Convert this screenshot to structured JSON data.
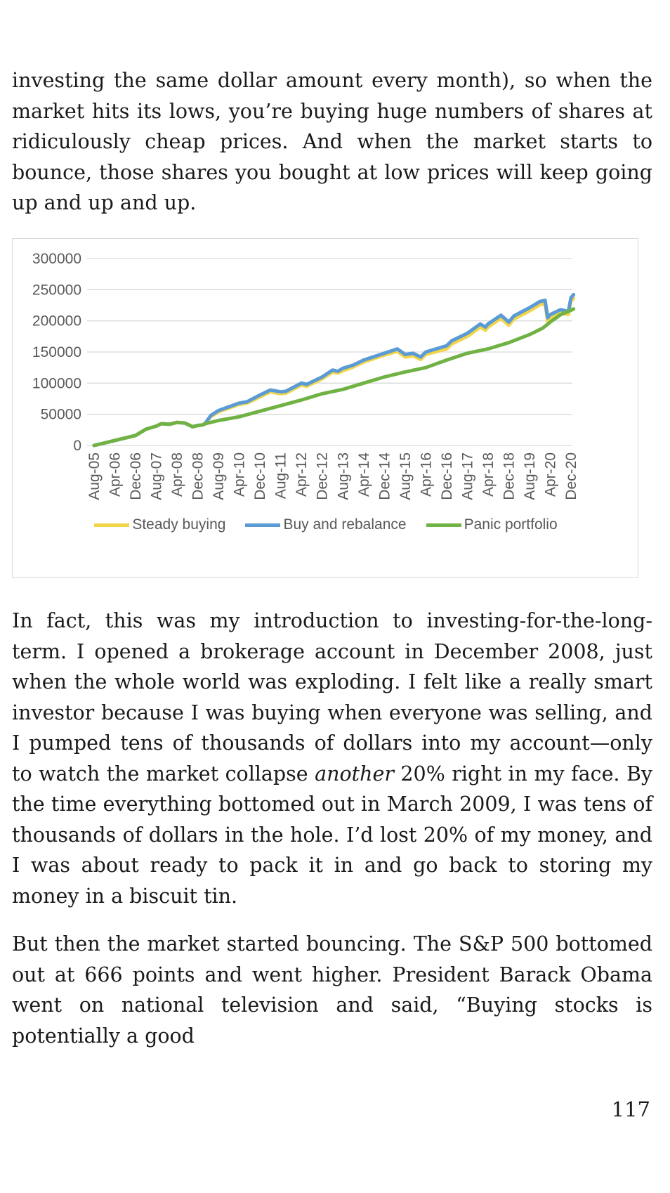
{
  "paragraphs": {
    "p1": "investing the same dollar amount every month), so when the market hits its lows, you’re buying huge numbers of shares at ridiculously cheap prices. And when the market starts to bounce, those shares you bought at low prices will keep going up and up and up.",
    "p2_before": "In fact, this was my introduction to investing-for-the-long-term. I opened a brokerage account in December 2008, just when the whole world was exploding. I felt like a really smart investor because I was buying when everyone was selling, and I pumped tens of thousands of dollars into my account—only to watch the market collapse ",
    "p2_em": "another",
    "p2_after": " 20% right in my face. By the time everything bottomed out in March 2009, I was tens of thousands of dollars in the hole. I’d lost 20% of my money, and I was about ready to pack it in and go back to storing my money in a biscuit tin.",
    "p3": "But then the market started bouncing. The S&P 500 bottomed out at 666 points and went higher. President Barack Obama went on national television and said, “Buying stocks is potentially a good"
  },
  "page_number": "117",
  "chart_data": {
    "type": "line",
    "ylim": [
      0,
      300000
    ],
    "y_ticks": [
      "300000",
      "250000",
      "200000",
      "150000",
      "100000",
      "50000",
      "0"
    ],
    "x_ticks": [
      "Aug-05",
      "Apr-06",
      "Dec-06",
      "Aug-07",
      "Apr-08",
      "Dec-08",
      "Aug-09",
      "Apr-10",
      "Dec-10",
      "Aug-11",
      "Apr-12",
      "Dec-12",
      "Aug-13",
      "Apr-14",
      "Dec-14",
      "Aug-15",
      "Apr-16",
      "Dec-16",
      "Aug-17",
      "Apr-18",
      "Dec-18",
      "Aug-19",
      "Apr-20",
      "Dec-20"
    ],
    "x_start": "Aug-05",
    "legend_position": "bottom",
    "grid": true,
    "series": [
      {
        "name": "Steady buying",
        "color": "#f2d54b",
        "points": [
          [
            "Aug-05",
            0
          ],
          [
            "Dec-05",
            4000
          ],
          [
            "Apr-06",
            8000
          ],
          [
            "Dec-06",
            16000
          ],
          [
            "Apr-07",
            26000
          ],
          [
            "Aug-07",
            31000
          ],
          [
            "Oct-07",
            35000
          ],
          [
            "Jan-08",
            34000
          ],
          [
            "Apr-08",
            37000
          ],
          [
            "Jul-08",
            36000
          ],
          [
            "Oct-08",
            30000
          ],
          [
            "Dec-08",
            32000
          ],
          [
            "Feb-09",
            33000
          ],
          [
            "Mar-09",
            36000
          ],
          [
            "May-09",
            46000
          ],
          [
            "Aug-09",
            54000
          ],
          [
            "Dec-09",
            60000
          ],
          [
            "Apr-10",
            66000
          ],
          [
            "Jul-10",
            68000
          ],
          [
            "Dec-10",
            78000
          ],
          [
            "Apr-11",
            86000
          ],
          [
            "Aug-11",
            83000
          ],
          [
            "Oct-11",
            84000
          ],
          [
            "Apr-12",
            97000
          ],
          [
            "Jun-12",
            95000
          ],
          [
            "Dec-12",
            107000
          ],
          [
            "Apr-13",
            118000
          ],
          [
            "Jun-13",
            116000
          ],
          [
            "Aug-13",
            120000
          ],
          [
            "Dec-13",
            126000
          ],
          [
            "Apr-14",
            134000
          ],
          [
            "Dec-14",
            145000
          ],
          [
            "May-15",
            151000
          ],
          [
            "Aug-15",
            142000
          ],
          [
            "Nov-15",
            144000
          ],
          [
            "Feb-16",
            138000
          ],
          [
            "Apr-16",
            146000
          ],
          [
            "Dec-16",
            155000
          ],
          [
            "Feb-17",
            163000
          ],
          [
            "Aug-17",
            175000
          ],
          [
            "Jan-18",
            190000
          ],
          [
            "Mar-18",
            185000
          ],
          [
            "Apr-18",
            190000
          ],
          [
            "Sep-18",
            204000
          ],
          [
            "Dec-18",
            193000
          ],
          [
            "Feb-19",
            203000
          ],
          [
            "Aug-19",
            216000
          ],
          [
            "Dec-19",
            226000
          ],
          [
            "Feb-20",
            228000
          ],
          [
            "Mar-20",
            200000
          ],
          [
            "Apr-20",
            205000
          ],
          [
            "Aug-20",
            213000
          ],
          [
            "Nov-20",
            210000
          ],
          [
            "Dec-20",
            232000
          ],
          [
            "Jan-21",
            236000
          ]
        ]
      },
      {
        "name": "Buy and rebalance",
        "color": "#5b9bd5",
        "points": [
          [
            "Aug-05",
            0
          ],
          [
            "Dec-05",
            4000
          ],
          [
            "Apr-06",
            8000
          ],
          [
            "Dec-06",
            16000
          ],
          [
            "Apr-07",
            26000
          ],
          [
            "Aug-07",
            31000
          ],
          [
            "Oct-07",
            35000
          ],
          [
            "Jan-08",
            34000
          ],
          [
            "Apr-08",
            37000
          ],
          [
            "Jul-08",
            36000
          ],
          [
            "Oct-08",
            30000
          ],
          [
            "Dec-08",
            32000
          ],
          [
            "Feb-09",
            33000
          ],
          [
            "Mar-09",
            36000
          ],
          [
            "May-09",
            48000
          ],
          [
            "Aug-09",
            56000
          ],
          [
            "Dec-09",
            62000
          ],
          [
            "Apr-10",
            68000
          ],
          [
            "Jul-10",
            70000
          ],
          [
            "Dec-10",
            81000
          ],
          [
            "Apr-11",
            89000
          ],
          [
            "Aug-11",
            86000
          ],
          [
            "Oct-11",
            87000
          ],
          [
            "Apr-12",
            100000
          ],
          [
            "Jun-12",
            98000
          ],
          [
            "Dec-12",
            110000
          ],
          [
            "Apr-13",
            121000
          ],
          [
            "Jun-13",
            119000
          ],
          [
            "Aug-13",
            124000
          ],
          [
            "Dec-13",
            129000
          ],
          [
            "Apr-14",
            137000
          ],
          [
            "Dec-14",
            148000
          ],
          [
            "May-15",
            155000
          ],
          [
            "Aug-15",
            146000
          ],
          [
            "Nov-15",
            148000
          ],
          [
            "Feb-16",
            142000
          ],
          [
            "Apr-16",
            150000
          ],
          [
            "Dec-16",
            160000
          ],
          [
            "Feb-17",
            168000
          ],
          [
            "Aug-17",
            180000
          ],
          [
            "Jan-18",
            195000
          ],
          [
            "Mar-18",
            190000
          ],
          [
            "Apr-18",
            195000
          ],
          [
            "Sep-18",
            209000
          ],
          [
            "Dec-18",
            198000
          ],
          [
            "Feb-19",
            208000
          ],
          [
            "Aug-19",
            221000
          ],
          [
            "Dec-19",
            231000
          ],
          [
            "Feb-20",
            233000
          ],
          [
            "Mar-20",
            205000
          ],
          [
            "Apr-20",
            210000
          ],
          [
            "Aug-20",
            218000
          ],
          [
            "Nov-20",
            215000
          ],
          [
            "Dec-20",
            237000
          ],
          [
            "Jan-21",
            242000
          ]
        ]
      },
      {
        "name": "Panic portfolio",
        "color": "#70b244",
        "points": [
          [
            "Aug-05",
            0
          ],
          [
            "Dec-05",
            4000
          ],
          [
            "Apr-06",
            8000
          ],
          [
            "Dec-06",
            16000
          ],
          [
            "Apr-07",
            26000
          ],
          [
            "Aug-07",
            31000
          ],
          [
            "Oct-07",
            35000
          ],
          [
            "Jan-08",
            34000
          ],
          [
            "Apr-08",
            37000
          ],
          [
            "Jul-08",
            36000
          ],
          [
            "Oct-08",
            30000
          ],
          [
            "Dec-08",
            32000
          ],
          [
            "Feb-09",
            33000
          ],
          [
            "Mar-09",
            35000
          ],
          [
            "Aug-09",
            40000
          ],
          [
            "Apr-10",
            46000
          ],
          [
            "Dec-10",
            55000
          ],
          [
            "Aug-11",
            64000
          ],
          [
            "Apr-12",
            73000
          ],
          [
            "Dec-12",
            83000
          ],
          [
            "Aug-13",
            90000
          ],
          [
            "Apr-14",
            100000
          ],
          [
            "Dec-14",
            110000
          ],
          [
            "Aug-15",
            118000
          ],
          [
            "Apr-16",
            125000
          ],
          [
            "Dec-16",
            137000
          ],
          [
            "Aug-17",
            148000
          ],
          [
            "Apr-18",
            155000
          ],
          [
            "Dec-18",
            165000
          ],
          [
            "Aug-19",
            178000
          ],
          [
            "Jan-20",
            188000
          ],
          [
            "Apr-20",
            198000
          ],
          [
            "Aug-20",
            210000
          ],
          [
            "Dec-20",
            217000
          ],
          [
            "Jan-21",
            219000
          ]
        ]
      }
    ]
  }
}
